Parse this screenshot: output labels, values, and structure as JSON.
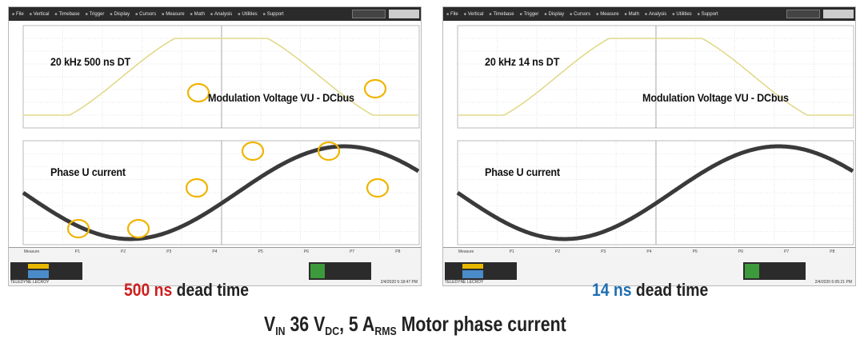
{
  "panels": [
    {
      "id": "left",
      "menu_items": [
        "File",
        "Vertical",
        "Timebase",
        "Trigger",
        "Display",
        "Cursors",
        "Measure",
        "Math",
        "Analysis",
        "Utilities",
        "Support"
      ],
      "freq_label": "20 kHz 500 ns DT",
      "voltage_label": "Modulation Voltage VU - DCbus",
      "current_label": "Phase U current",
      "highlight_circles": true,
      "accent": "#cc1f1f"
    },
    {
      "id": "right",
      "menu_items": [
        "File",
        "Vertical",
        "Timebase",
        "Trigger",
        "Display",
        "Cursors",
        "Measure",
        "Math",
        "Analysis",
        "Utilities",
        "Support"
      ],
      "freq_label": "20 kHz 14 ns DT",
      "voltage_label": "Modulation Voltage VU - DCbus",
      "current_label": "Phase U current",
      "highlight_circles": false,
      "accent": "#1f6fb0"
    }
  ],
  "captions": {
    "left": {
      "value": "500 ns",
      "text": " dead time",
      "color": "#cc1f1f"
    },
    "right": {
      "value": "14 ns",
      "text": " dead time",
      "color": "#1f6fb0"
    }
  },
  "bottom_caption": {
    "v": "V",
    "v_sub": "IN",
    "vin_value": " 36 V",
    "dc_sub": "DC",
    "comma_current": ", 5 A",
    "rms_sub": "RMS",
    "tail": " Motor phase current"
  },
  "colors": {
    "voltage_trace": "#e2d98a",
    "current_trace": "#3a3a3a",
    "circle": "#f0b400",
    "grid": "#cfcfcf"
  }
}
